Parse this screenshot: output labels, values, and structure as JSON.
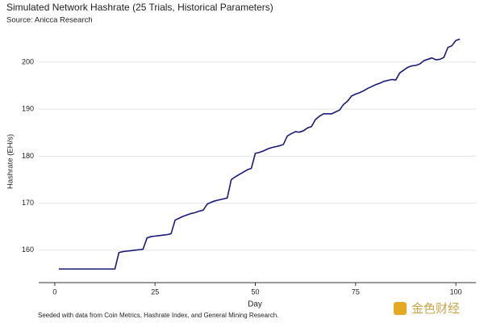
{
  "chart_data": {
    "type": "line",
    "title": "Simulated Network Hashrate (25 Trials, Historical Parameters)",
    "subtitle": "Source: Anicca Research",
    "x_label": "Day",
    "y_label": "Hashrate (EH/s)",
    "footnote": "Seeded with data from Coin Metrics, Hashrate Index, and General Mining Research.",
    "watermark": "金色财经",
    "x": [
      1,
      2,
      3,
      4,
      5,
      6,
      7,
      8,
      9,
      10,
      11,
      12,
      13,
      14,
      15,
      16,
      17,
      18,
      19,
      20,
      21,
      22,
      23,
      24,
      25,
      26,
      27,
      28,
      29,
      30,
      31,
      32,
      33,
      34,
      35,
      36,
      37,
      38,
      39,
      40,
      41,
      42,
      43,
      44,
      45,
      46,
      47,
      48,
      49,
      50,
      51,
      52,
      53,
      54,
      55,
      56,
      57,
      58,
      59,
      60,
      61,
      62,
      63,
      64,
      65,
      66,
      67,
      68,
      69,
      70,
      71,
      72,
      73,
      74,
      75,
      76,
      77,
      78,
      79,
      80,
      81,
      82,
      83,
      84,
      85,
      86,
      87,
      88,
      89,
      90,
      91,
      92,
      93,
      94,
      95,
      96,
      97,
      98,
      99,
      100,
      101
    ],
    "series": [
      {
        "name": "Hashrate",
        "color": "#1a1a7a",
        "values": [
          156,
          156,
          156,
          156,
          156,
          156,
          156,
          156,
          156,
          156,
          156,
          156,
          156,
          156,
          156,
          159.5,
          159.7,
          159.8,
          159.9,
          160,
          160.1,
          160.2,
          162.6,
          162.9,
          163,
          163.1,
          163.2,
          163.3,
          163.5,
          166.4,
          166.8,
          167.2,
          167.5,
          167.8,
          168,
          168.3,
          168.5,
          169.8,
          170.2,
          170.5,
          170.7,
          170.9,
          171.1,
          175,
          175.6,
          176.1,
          176.6,
          177.1,
          177.4,
          180.6,
          180.8,
          181.1,
          181.5,
          181.8,
          182,
          182.2,
          182.5,
          184.3,
          184.8,
          185.2,
          185.1,
          185.4,
          186,
          186.3,
          187.8,
          188.5,
          189,
          189,
          189,
          189.4,
          189.8,
          191,
          191.7,
          192.8,
          193.2,
          193.5,
          193.9,
          194.4,
          194.8,
          195.2,
          195.5,
          195.9,
          196.1,
          196.3,
          196.2,
          197.7,
          198.3,
          198.9,
          199.2,
          199.3,
          199.6,
          200.3,
          200.6,
          200.9,
          200.5,
          200.6,
          201,
          203.1,
          203.5,
          204.6,
          204.9
        ]
      }
    ],
    "xlim": [
      -4,
      105
    ],
    "ylim": [
      153.1,
      206
    ],
    "xticks": [
      0,
      25,
      50,
      75,
      100
    ],
    "yticks": [
      160,
      170,
      180,
      190,
      200
    ],
    "grid": true,
    "legend": false
  }
}
